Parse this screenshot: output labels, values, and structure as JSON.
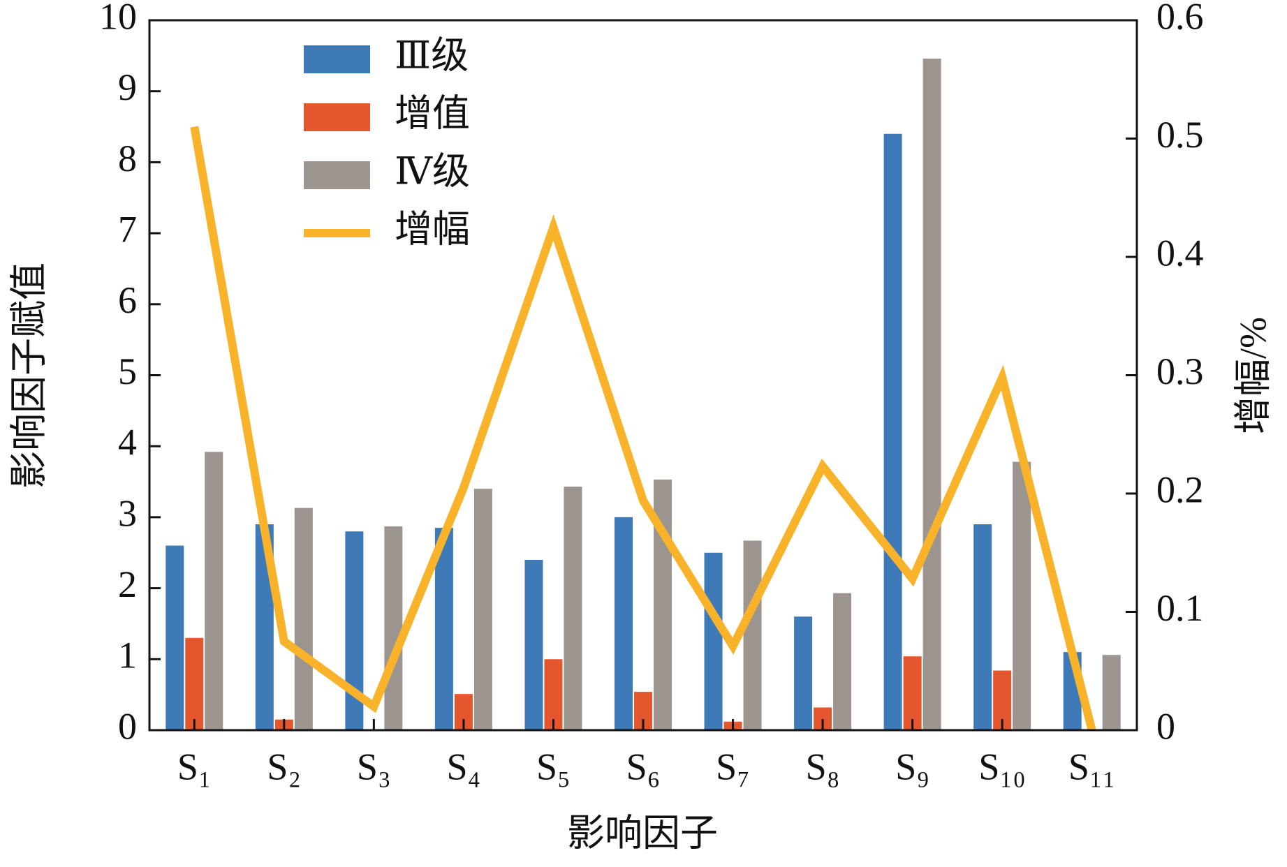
{
  "chart_data": {
    "type": "bar",
    "categories": [
      "S₁",
      "S₂",
      "S₃",
      "S₄",
      "S₅",
      "S₆",
      "S₇",
      "S₈",
      "S₉",
      "S₁₀",
      "S₁₁"
    ],
    "x_label": "影响因子",
    "y_label": "影响因子赋值",
    "y2_label": "增幅/%",
    "ylim": [
      0,
      10
    ],
    "yticks": [
      0,
      1,
      2,
      3,
      4,
      5,
      6,
      7,
      8,
      9,
      10
    ],
    "y2lim": [
      0,
      0.6
    ],
    "y2ticks": [
      0,
      0.1,
      0.2,
      0.3,
      0.4,
      0.5,
      0.6
    ],
    "legend_loc": "upper left",
    "series": [
      {
        "name": "Ⅲ级",
        "color": "#3f7ab8",
        "type": "bar",
        "values": [
          2.6,
          2.9,
          2.8,
          2.85,
          2.4,
          3.0,
          2.5,
          1.6,
          8.4,
          2.9,
          1.1
        ]
      },
      {
        "name": "增值",
        "color": "#e4572e",
        "type": "bar",
        "values": [
          1.3,
          0.15,
          0,
          0.51,
          1.0,
          0.54,
          0.12,
          0.32,
          1.04,
          0.84,
          0
        ]
      },
      {
        "name": "Ⅳ级",
        "color": "#9b948f",
        "type": "bar",
        "values": [
          3.92,
          3.13,
          2.87,
          3.4,
          3.43,
          3.53,
          2.67,
          1.93,
          9.46,
          3.78,
          1.06
        ]
      },
      {
        "name": "增幅",
        "color": "#f9b32a",
        "type": "line",
        "axis": "y2",
        "values": [
          0.51,
          0.075,
          0.02,
          0.205,
          0.425,
          0.194,
          0.071,
          0.223,
          0.128,
          0.298,
          0
        ]
      }
    ]
  }
}
